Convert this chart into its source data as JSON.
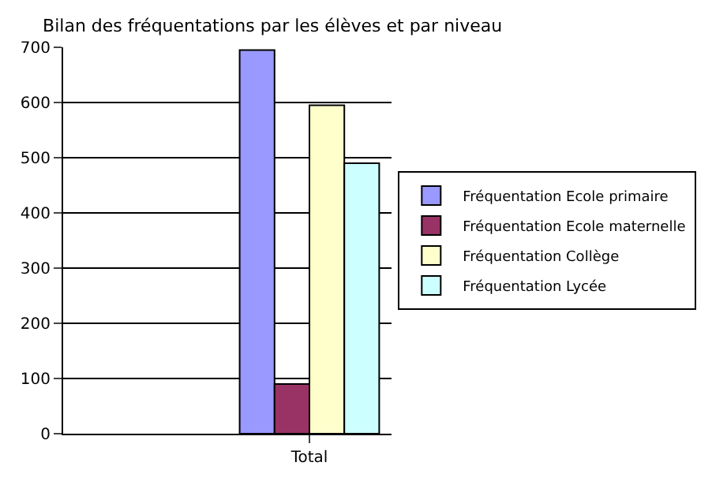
{
  "chart_data": {
    "type": "bar",
    "title": "Bilan des fréquentations par les élèves et par niveau",
    "categories": [
      null,
      "Total"
    ],
    "series": [
      {
        "name": "Fréquentation Ecole primaire",
        "color": "#9999ff",
        "values": [
          null,
          695
        ]
      },
      {
        "name": "Fréquentation Ecole maternelle",
        "color": "#993366",
        "values": [
          null,
          90
        ]
      },
      {
        "name": "Fréquentation Collège",
        "color": "#ffffcc",
        "values": [
          null,
          595
        ]
      },
      {
        "name": "Fréquentation Lycée",
        "color": "#ccffff",
        "values": [
          null,
          490
        ]
      }
    ],
    "ylim": [
      0,
      700
    ],
    "yticks": [
      0,
      100,
      200,
      300,
      400,
      500,
      600,
      700
    ],
    "grid": "y",
    "legend": "right"
  }
}
